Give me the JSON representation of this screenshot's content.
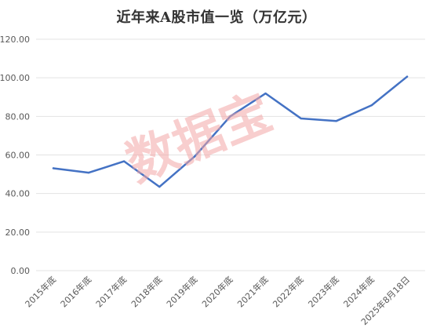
{
  "chart_data": {
    "type": "line",
    "title": "近年来A股市值一览（万亿元）",
    "xlabel": "",
    "ylabel": "",
    "categories": [
      "2015年底",
      "2016年底",
      "2017年底",
      "2018年底",
      "2019年底",
      "2020年底",
      "2021年底",
      "2022年底",
      "2023年底",
      "2024年底",
      "2025年8月18日"
    ],
    "series": [
      {
        "values": [
          53.1,
          50.8,
          56.7,
          43.5,
          59.3,
          80.0,
          91.9,
          78.9,
          77.6,
          85.8,
          100.6
        ]
      }
    ],
    "ylim": [
      0,
      120
    ],
    "yticks": [
      0,
      20,
      40,
      60,
      80,
      100,
      120
    ],
    "ytick_labels": [
      "0.00",
      "20.00",
      "40.00",
      "60.00",
      "80.00",
      "100.00",
      "120.00"
    ],
    "grid": true,
    "legend": "none",
    "watermark": "数据宝",
    "colors": {
      "line": "#4472c4",
      "grid": "#e3e3e3",
      "axis_text": "#595959",
      "title": "#333333",
      "watermark": "#f2a6a6"
    }
  }
}
